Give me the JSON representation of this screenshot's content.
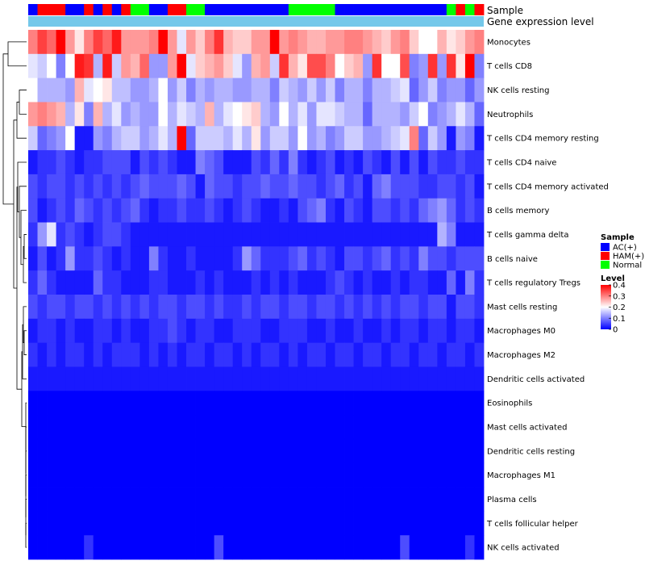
{
  "chart_data": {
    "type": "heatmap",
    "annotation_bars": [
      {
        "id": "sample",
        "label": "Sample"
      },
      {
        "id": "gene",
        "label": "Gene expression level",
        "color": "#74c8ea"
      }
    ],
    "sample_groups": [
      "AC(+)",
      "HAM(+)",
      "HAM(+)",
      "HAM(+)",
      "AC(+)",
      "AC(+)",
      "HAM(+)",
      "AC(+)",
      "HAM(+)",
      "AC(+)",
      "HAM(+)",
      "Normal",
      "Normal",
      "AC(+)",
      "AC(+)",
      "HAM(+)",
      "HAM(+)",
      "Normal",
      "Normal",
      "AC(+)",
      "AC(+)",
      "AC(+)",
      "AC(+)",
      "AC(+)",
      "AC(+)",
      "AC(+)",
      "AC(+)",
      "AC(+)",
      "Normal",
      "Normal",
      "Normal",
      "Normal",
      "Normal",
      "AC(+)",
      "AC(+)",
      "AC(+)",
      "AC(+)",
      "AC(+)",
      "AC(+)",
      "AC(+)",
      "AC(+)",
      "AC(+)",
      "AC(+)",
      "AC(+)",
      "AC(+)",
      "Normal",
      "HAM(+)",
      "Normal",
      "HAM(+)"
    ],
    "rows": [
      "Monocytes",
      "T cells CD8",
      "NK cells resting",
      "Neutrophils",
      "T cells CD4 memory resting",
      "T cells CD4 naive",
      "T cells CD4 memory activated",
      "B cells memory",
      "T cells gamma delta",
      "B cells naive",
      "T cells regulatory  Tregs",
      "Mast cells resting",
      "Macrophages M0",
      "Macrophages M2",
      "Dendritic cells activated",
      "Eosinophils",
      "Mast cells activated",
      "Dendritic cells resting",
      "Macrophages M1",
      "Plasma cells",
      "T cells follicular helper",
      "NK cells activated"
    ],
    "values": [
      [
        0.3,
        0.35,
        0.32,
        0.4,
        0.28,
        0.22,
        0.3,
        0.35,
        0.32,
        0.38,
        0.28,
        0.28,
        0.28,
        0.3,
        0.4,
        0.28,
        0.18,
        0.28,
        0.24,
        0.3,
        0.36,
        0.26,
        0.24,
        0.24,
        0.28,
        0.28,
        0.4,
        0.28,
        0.3,
        0.28,
        0.26,
        0.26,
        0.28,
        0.28,
        0.3,
        0.3,
        0.28,
        0.26,
        0.24,
        0.28,
        0.3,
        0.24,
        0.2,
        0.2,
        0.26,
        0.22,
        0.24,
        0.28,
        0.3
      ],
      [
        0.18,
        0.16,
        0.2,
        0.1,
        0.2,
        0.38,
        0.36,
        0.14,
        0.38,
        0.16,
        0.28,
        0.26,
        0.32,
        0.12,
        0.12,
        0.28,
        0.4,
        0.18,
        0.24,
        0.26,
        0.28,
        0.24,
        0.18,
        0.12,
        0.26,
        0.28,
        0.16,
        0.36,
        0.26,
        0.22,
        0.34,
        0.34,
        0.3,
        0.2,
        0.24,
        0.26,
        0.12,
        0.36,
        0.2,
        0.2,
        0.34,
        0.1,
        0.12,
        0.36,
        0.12,
        0.36,
        0.22,
        0.4,
        0.1
      ],
      [
        0.2,
        0.14,
        0.14,
        0.14,
        0.12,
        0.26,
        0.18,
        0.2,
        0.22,
        0.15,
        0.15,
        0.12,
        0.12,
        0.14,
        0.2,
        0.12,
        0.16,
        0.1,
        0.14,
        0.12,
        0.14,
        0.14,
        0.12,
        0.12,
        0.14,
        0.14,
        0.1,
        0.16,
        0.14,
        0.12,
        0.16,
        0.12,
        0.16,
        0.1,
        0.14,
        0.14,
        0.1,
        0.14,
        0.14,
        0.16,
        0.18,
        0.08,
        0.12,
        0.16,
        0.1,
        0.12,
        0.12,
        0.08,
        0.12
      ],
      [
        0.28,
        0.3,
        0.28,
        0.26,
        0.14,
        0.22,
        0.1,
        0.26,
        0.14,
        0.18,
        0.12,
        0.14,
        0.12,
        0.12,
        0.2,
        0.14,
        0.18,
        0.16,
        0.14,
        0.26,
        0.14,
        0.18,
        0.2,
        0.22,
        0.24,
        0.14,
        0.12,
        0.2,
        0.14,
        0.18,
        0.12,
        0.18,
        0.18,
        0.16,
        0.14,
        0.14,
        0.08,
        0.14,
        0.14,
        0.14,
        0.12,
        0.16,
        0.2,
        0.1,
        0.12,
        0.14,
        0.18,
        0.14,
        0.08
      ],
      [
        0.16,
        0.08,
        0.1,
        0.12,
        0.2,
        0.02,
        0.02,
        0.12,
        0.1,
        0.14,
        0.16,
        0.16,
        0.12,
        0.14,
        0.18,
        0.14,
        0.4,
        0.08,
        0.16,
        0.16,
        0.16,
        0.14,
        0.18,
        0.14,
        0.22,
        0.12,
        0.16,
        0.16,
        0.12,
        0.2,
        0.12,
        0.14,
        0.1,
        0.12,
        0.16,
        0.16,
        0.12,
        0.12,
        0.14,
        0.16,
        0.18,
        0.3,
        0.08,
        0.16,
        0.12,
        0.02,
        0.12,
        0.1,
        0.02
      ],
      [
        0.02,
        0.04,
        0.04,
        0.06,
        0.04,
        0.02,
        0.04,
        0.04,
        0.06,
        0.06,
        0.06,
        0.02,
        0.06,
        0.04,
        0.06,
        0.04,
        0.02,
        0.02,
        0.1,
        0.08,
        0.06,
        0.02,
        0.02,
        0.02,
        0.06,
        0.04,
        0.08,
        0.04,
        0.1,
        0.04,
        0.02,
        0.04,
        0.06,
        0.02,
        0.04,
        0.02,
        0.06,
        0.04,
        0.02,
        0.06,
        0.02,
        0.06,
        0.02,
        0.06,
        0.04,
        0.04,
        0.06,
        0.04,
        0.04
      ],
      [
        0.06,
        0.04,
        0.06,
        0.06,
        0.04,
        0.06,
        0.04,
        0.06,
        0.04,
        0.06,
        0.04,
        0.06,
        0.08,
        0.06,
        0.06,
        0.06,
        0.08,
        0.06,
        0.02,
        0.08,
        0.06,
        0.06,
        0.04,
        0.06,
        0.06,
        0.08,
        0.06,
        0.06,
        0.08,
        0.06,
        0.06,
        0.04,
        0.06,
        0.08,
        0.04,
        0.06,
        0.02,
        0.08,
        0.1,
        0.06,
        0.06,
        0.06,
        0.04,
        0.04,
        0.06,
        0.06,
        0.04,
        0.06,
        0.02
      ],
      [
        0.06,
        0.02,
        0.04,
        0.06,
        0.04,
        0.08,
        0.06,
        0.04,
        0.06,
        0.04,
        0.06,
        0.08,
        0.04,
        0.02,
        0.04,
        0.04,
        0.06,
        0.04,
        0.04,
        0.06,
        0.04,
        0.02,
        0.04,
        0.06,
        0.04,
        0.02,
        0.02,
        0.04,
        0.02,
        0.06,
        0.08,
        0.1,
        0.04,
        0.02,
        0.06,
        0.04,
        0.02,
        0.06,
        0.06,
        0.04,
        0.06,
        0.04,
        0.08,
        0.1,
        0.12,
        0.08,
        0.04,
        0.06,
        0.04
      ],
      [
        0.04,
        0.12,
        0.18,
        0.04,
        0.06,
        0.04,
        0.02,
        0.04,
        0.06,
        0.06,
        0.04,
        0.02,
        0.02,
        0.02,
        0.02,
        0.02,
        0.02,
        0.02,
        0.02,
        0.02,
        0.02,
        0.02,
        0.02,
        0.02,
        0.02,
        0.02,
        0.02,
        0.02,
        0.02,
        0.02,
        0.02,
        0.02,
        0.02,
        0.02,
        0.02,
        0.02,
        0.02,
        0.02,
        0.02,
        0.02,
        0.02,
        0.02,
        0.02,
        0.02,
        0.14,
        0.1,
        0.02,
        0.02,
        0.02
      ],
      [
        0.02,
        0.06,
        0.02,
        0.04,
        0.12,
        0.04,
        0.04,
        0.06,
        0.04,
        0.02,
        0.04,
        0.02,
        0.02,
        0.1,
        0.04,
        0.02,
        0.02,
        0.04,
        0.02,
        0.02,
        0.02,
        0.02,
        0.04,
        0.12,
        0.08,
        0.04,
        0.04,
        0.04,
        0.06,
        0.08,
        0.04,
        0.06,
        0.04,
        0.02,
        0.06,
        0.06,
        0.04,
        0.06,
        0.08,
        0.04,
        0.06,
        0.04,
        0.1,
        0.06,
        0.06,
        0.04,
        0.06,
        0.06,
        0.06
      ],
      [
        0.04,
        0.08,
        0.04,
        0.02,
        0.02,
        0.02,
        0.02,
        0.08,
        0.04,
        0.04,
        0.02,
        0.02,
        0.02,
        0.04,
        0.04,
        0.02,
        0.02,
        0.02,
        0.04,
        0.02,
        0.04,
        0.02,
        0.02,
        0.02,
        0.04,
        0.02,
        0.04,
        0.02,
        0.04,
        0.02,
        0.02,
        0.02,
        0.04,
        0.06,
        0.04,
        0.02,
        0.04,
        0.02,
        0.02,
        0.04,
        0.02,
        0.04,
        0.04,
        0.02,
        0.02,
        0.08,
        0.02,
        0.1,
        0.04
      ],
      [
        0.06,
        0.04,
        0.06,
        0.06,
        0.04,
        0.06,
        0.06,
        0.04,
        0.06,
        0.04,
        0.06,
        0.04,
        0.06,
        0.04,
        0.06,
        0.06,
        0.04,
        0.06,
        0.06,
        0.04,
        0.06,
        0.04,
        0.04,
        0.06,
        0.04,
        0.06,
        0.06,
        0.04,
        0.06,
        0.06,
        0.04,
        0.06,
        0.06,
        0.04,
        0.06,
        0.04,
        0.06,
        0.04,
        0.06,
        0.04,
        0.06,
        0.06,
        0.04,
        0.06,
        0.06,
        0.02,
        0.06,
        0.06,
        0.04
      ],
      [
        0.02,
        0.04,
        0.04,
        0.02,
        0.04,
        0.02,
        0.02,
        0.04,
        0.04,
        0.02,
        0.04,
        0.02,
        0.02,
        0.04,
        0.04,
        0.06,
        0.04,
        0.02,
        0.04,
        0.04,
        0.02,
        0.02,
        0.04,
        0.04,
        0.04,
        0.02,
        0.02,
        0.04,
        0.04,
        0.04,
        0.02,
        0.02,
        0.04,
        0.02,
        0.02,
        0.04,
        0.02,
        0.02,
        0.04,
        0.02,
        0.04,
        0.04,
        0.02,
        0.04,
        0.04,
        0.02,
        0.04,
        0.04,
        0.02
      ],
      [
        0.04,
        0.02,
        0.04,
        0.02,
        0.04,
        0.04,
        0.02,
        0.04,
        0.02,
        0.04,
        0.04,
        0.04,
        0.02,
        0.04,
        0.02,
        0.04,
        0.02,
        0.04,
        0.04,
        0.02,
        0.04,
        0.04,
        0.02,
        0.04,
        0.02,
        0.04,
        0.04,
        0.02,
        0.04,
        0.02,
        0.04,
        0.04,
        0.02,
        0.04,
        0.04,
        0.02,
        0.04,
        0.04,
        0.02,
        0.04,
        0.04,
        0.02,
        0.04,
        0.04,
        0.02,
        0.04,
        0.04,
        0.02,
        0.04
      ],
      [
        0.02,
        0.02,
        0.02,
        0.02,
        0.02,
        0.02,
        0.02,
        0.02,
        0.02,
        0.02,
        0.02,
        0.02,
        0.02,
        0.02,
        0.02,
        0.02,
        0.02,
        0.02,
        0.02,
        0.02,
        0.02,
        0.02,
        0.02,
        0.02,
        0.02,
        0.02,
        0.02,
        0.02,
        0.02,
        0.02,
        0.02,
        0.02,
        0.02,
        0.02,
        0.02,
        0.02,
        0.02,
        0.02,
        0.02,
        0.02,
        0.02,
        0.02,
        0.02,
        0.02,
        0.02,
        0.02,
        0.02,
        0.02,
        0.02
      ],
      [
        0.0,
        0.0,
        0.0,
        0.0,
        0.0,
        0.0,
        0.0,
        0.0,
        0.0,
        0.0,
        0.0,
        0.0,
        0.0,
        0.0,
        0.0,
        0.0,
        0.0,
        0.0,
        0.0,
        0.0,
        0.0,
        0.0,
        0.0,
        0.0,
        0.0,
        0.0,
        0.0,
        0.0,
        0.0,
        0.0,
        0.0,
        0.0,
        0.0,
        0.0,
        0.0,
        0.0,
        0.0,
        0.0,
        0.0,
        0.0,
        0.0,
        0.0,
        0.0,
        0.0,
        0.0,
        0.0,
        0.0,
        0.0,
        0.0
      ],
      [
        0.0,
        0.0,
        0.0,
        0.0,
        0.0,
        0.0,
        0.0,
        0.0,
        0.0,
        0.0,
        0.0,
        0.0,
        0.0,
        0.0,
        0.0,
        0.0,
        0.0,
        0.0,
        0.0,
        0.0,
        0.0,
        0.0,
        0.0,
        0.0,
        0.0,
        0.0,
        0.0,
        0.0,
        0.0,
        0.0,
        0.0,
        0.0,
        0.0,
        0.0,
        0.0,
        0.0,
        0.0,
        0.0,
        0.0,
        0.0,
        0.0,
        0.0,
        0.0,
        0.0,
        0.0,
        0.0,
        0.0,
        0.0,
        0.0
      ],
      [
        0.0,
        0.0,
        0.0,
        0.0,
        0.0,
        0.0,
        0.0,
        0.0,
        0.0,
        0.0,
        0.0,
        0.0,
        0.0,
        0.0,
        0.0,
        0.0,
        0.0,
        0.0,
        0.0,
        0.0,
        0.0,
        0.0,
        0.0,
        0.0,
        0.0,
        0.0,
        0.0,
        0.0,
        0.0,
        0.0,
        0.0,
        0.0,
        0.0,
        0.0,
        0.0,
        0.0,
        0.0,
        0.0,
        0.0,
        0.0,
        0.0,
        0.0,
        0.0,
        0.0,
        0.0,
        0.0,
        0.0,
        0.0,
        0.0
      ],
      [
        0.0,
        0.0,
        0.0,
        0.0,
        0.0,
        0.0,
        0.0,
        0.0,
        0.0,
        0.0,
        0.0,
        0.0,
        0.0,
        0.0,
        0.0,
        0.0,
        0.0,
        0.0,
        0.0,
        0.0,
        0.0,
        0.0,
        0.0,
        0.0,
        0.0,
        0.0,
        0.0,
        0.0,
        0.0,
        0.0,
        0.0,
        0.0,
        0.0,
        0.0,
        0.0,
        0.0,
        0.0,
        0.0,
        0.0,
        0.0,
        0.0,
        0.0,
        0.0,
        0.0,
        0.0,
        0.0,
        0.0,
        0.0,
        0.0
      ],
      [
        0.0,
        0.0,
        0.0,
        0.0,
        0.0,
        0.0,
        0.0,
        0.0,
        0.0,
        0.0,
        0.0,
        0.0,
        0.0,
        0.0,
        0.0,
        0.0,
        0.0,
        0.0,
        0.0,
        0.0,
        0.0,
        0.0,
        0.0,
        0.0,
        0.0,
        0.0,
        0.0,
        0.0,
        0.0,
        0.0,
        0.0,
        0.0,
        0.0,
        0.0,
        0.0,
        0.0,
        0.0,
        0.0,
        0.0,
        0.0,
        0.0,
        0.0,
        0.0,
        0.0,
        0.0,
        0.0,
        0.0,
        0.0,
        0.0
      ],
      [
        0.0,
        0.0,
        0.0,
        0.0,
        0.0,
        0.0,
        0.0,
        0.0,
        0.0,
        0.0,
        0.0,
        0.0,
        0.0,
        0.0,
        0.0,
        0.0,
        0.0,
        0.0,
        0.0,
        0.0,
        0.0,
        0.0,
        0.0,
        0.0,
        0.0,
        0.0,
        0.0,
        0.0,
        0.0,
        0.0,
        0.0,
        0.0,
        0.0,
        0.0,
        0.0,
        0.0,
        0.0,
        0.0,
        0.0,
        0.0,
        0.0,
        0.0,
        0.0,
        0.0,
        0.0,
        0.0,
        0.0,
        0.0,
        0.0
      ],
      [
        0.0,
        0.0,
        0.0,
        0.0,
        0.0,
        0.0,
        0.04,
        0.0,
        0.0,
        0.0,
        0.0,
        0.0,
        0.0,
        0.0,
        0.0,
        0.0,
        0.0,
        0.0,
        0.0,
        0.0,
        0.06,
        0.0,
        0.0,
        0.0,
        0.0,
        0.0,
        0.0,
        0.0,
        0.0,
        0.0,
        0.0,
        0.0,
        0.0,
        0.0,
        0.0,
        0.0,
        0.0,
        0.0,
        0.0,
        0.0,
        0.06,
        0.0,
        0.0,
        0.0,
        0.0,
        0.0,
        0.0,
        0.04,
        0.0
      ]
    ],
    "legend": {
      "sample_title": "Sample",
      "sample_entries": [
        {
          "label": "AC(+)",
          "color": "#0000ff"
        },
        {
          "label": "HAM(+)",
          "color": "#ff0000"
        },
        {
          "label": "Normal",
          "color": "#00ff00"
        }
      ],
      "level_title": "Level",
      "level_ticks": [
        0.4,
        0.3,
        0.2,
        0.1,
        0
      ],
      "level_range": [
        0,
        0.4
      ],
      "level_colors": [
        "#0000ff",
        "#ffffff",
        "#ff0000"
      ]
    }
  }
}
